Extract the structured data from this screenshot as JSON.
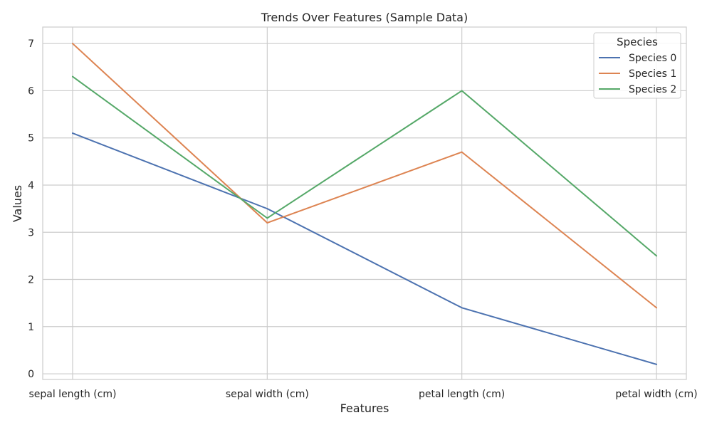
{
  "chart_data": {
    "type": "line",
    "title": "Trends Over Features (Sample Data)",
    "xlabel": "Features",
    "ylabel": "Values",
    "categories": [
      "sepal length (cm)",
      "sepal width (cm)",
      "petal length (cm)",
      "petal width (cm)"
    ],
    "ylim": [
      -0.12,
      7.35
    ],
    "yticks": [
      "0",
      "1",
      "2",
      "3",
      "4",
      "5",
      "6",
      "7"
    ],
    "grid": true,
    "legend": {
      "title": "Species",
      "placement": "top-right"
    },
    "series": [
      {
        "name": "Species 0",
        "color": "#4c72b0",
        "values": [
          5.1,
          3.5,
          1.4,
          0.2
        ]
      },
      {
        "name": "Species 1",
        "color": "#dd8452",
        "values": [
          7.0,
          3.2,
          4.7,
          1.4
        ]
      },
      {
        "name": "Species 2",
        "color": "#55a868",
        "values": [
          6.3,
          3.3,
          6.0,
          2.5
        ]
      }
    ]
  }
}
